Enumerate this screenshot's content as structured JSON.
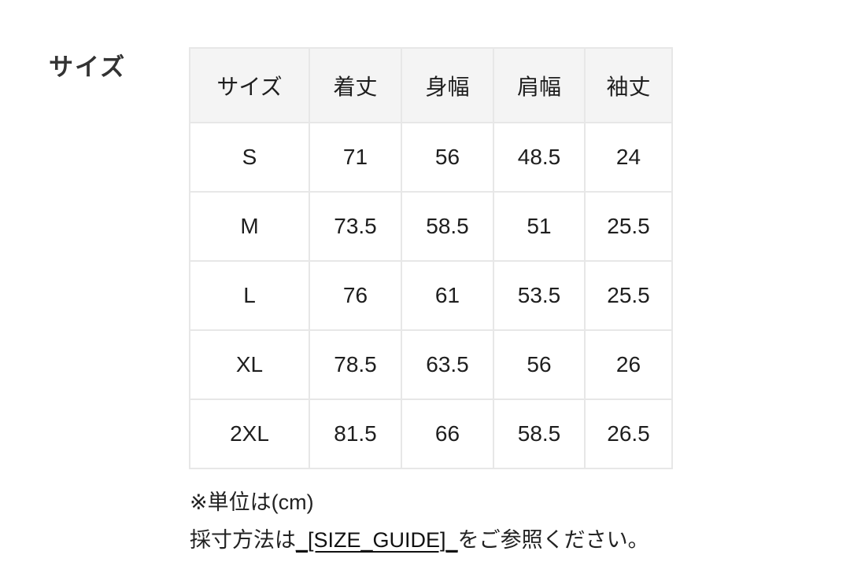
{
  "section": {
    "label": "サイズ"
  },
  "size_table": {
    "headers": [
      "サイズ",
      "着丈",
      "身幅",
      "肩幅",
      "袖丈"
    ],
    "rows": [
      {
        "size": "S",
        "values": [
          "71",
          "56",
          "48.5",
          "24"
        ]
      },
      {
        "size": "M",
        "values": [
          "73.5",
          "58.5",
          "51",
          "25.5"
        ]
      },
      {
        "size": "L",
        "values": [
          "76",
          "61",
          "53.5",
          "25.5"
        ]
      },
      {
        "size": "XL",
        "values": [
          "78.5",
          "63.5",
          "56",
          "26"
        ]
      },
      {
        "size": "2XL",
        "values": [
          "81.5",
          "66",
          "58.5",
          "26.5"
        ]
      }
    ]
  },
  "notes": {
    "unit": "※単位は(cm)",
    "guide_prefix": "採寸方法は",
    "guide_link": "_[SIZE_GUIDE]_",
    "guide_suffix": "をご参照ください。"
  },
  "colors": {
    "header_bg": "#f4f4f4",
    "border": "#e7e7e7",
    "text": "#1e1e1e",
    "label": "#333333",
    "background": "#ffffff"
  }
}
